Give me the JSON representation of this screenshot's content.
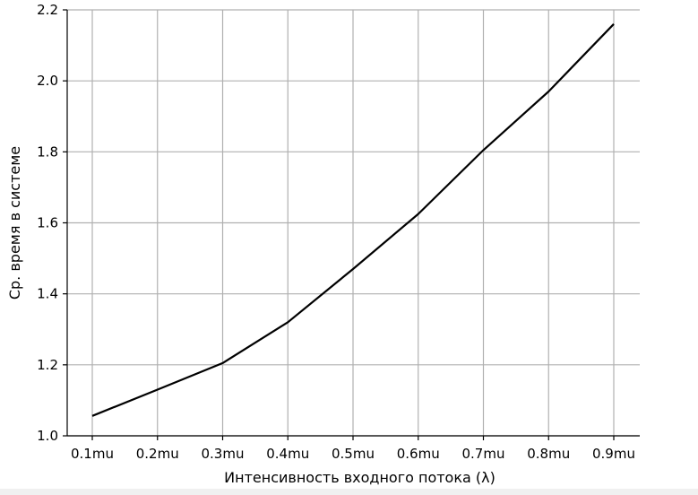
{
  "colors": {
    "line": "#000000",
    "grid": "#b0b0b0",
    "axis": "#000000",
    "background": "#ffffff"
  },
  "chart_data": {
    "type": "line",
    "title": "",
    "xlabel": "Интенсивность входного потока (λ)",
    "ylabel": "Ср. время в системе",
    "categories": [
      "0.1mu",
      "0.2mu",
      "0.3mu",
      "0.4mu",
      "0.5mu",
      "0.6mu",
      "0.7mu",
      "0.8mu",
      "0.9mu"
    ],
    "values": [
      1.056,
      1.13,
      1.205,
      1.32,
      1.47,
      1.625,
      1.805,
      1.97,
      2.16
    ],
    "ylim": [
      1.0,
      2.2
    ],
    "yticks": [
      "1.0",
      "1.2",
      "1.4",
      "1.6",
      "1.8",
      "2.0",
      "2.2"
    ],
    "grid": true,
    "legend": "none"
  }
}
